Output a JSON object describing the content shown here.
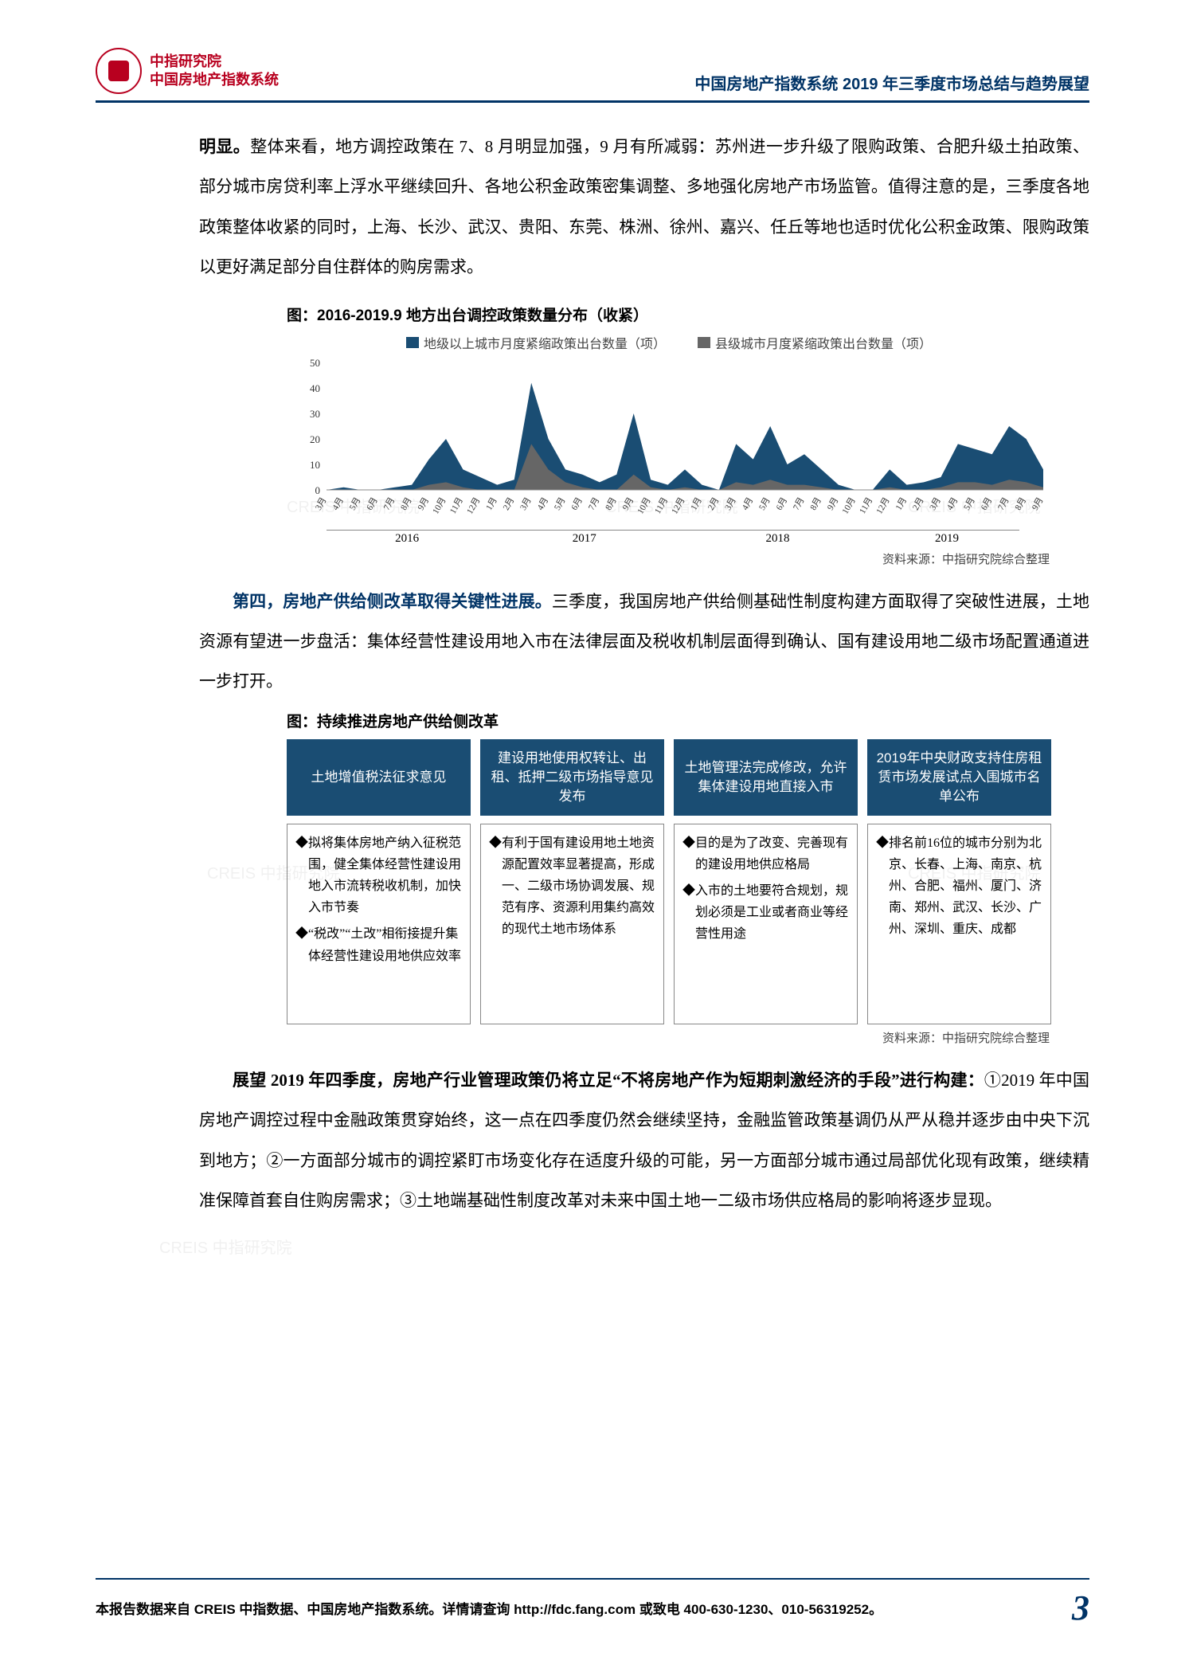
{
  "header": {
    "org_line1": "中指研究院",
    "org_line2": "中国房地产指数系统",
    "doc_title": "中国房地产指数系统 2019 年三季度市场总结与趋势展望"
  },
  "para1_lead": "明显。",
  "para1": "整体来看，地方调控政策在 7、8 月明显加强，9 月有所减弱：苏州进一步升级了限购政策、合肥升级土拍政策、部分城市房贷利率上浮水平继续回升、各地公积金政策密集调整、多地强化房地产市场监管。值得注意的是，三季度各地政策整体收紧的同时，上海、长沙、武汉、贵阳、东莞、株洲、徐州、嘉兴、任丘等地也适时优化公积金政策、限购政策以更好满足部分自住群体的购房需求。",
  "chart1": {
    "title": "图：2016-2019.9 地方出台调控政策数量分布（收紧）",
    "legend": {
      "series1": {
        "label": "地级以上城市月度紧缩政策出台数量（项）",
        "color": "#1a4d73"
      },
      "series2": {
        "label": "县级城市月度紧缩政策出台数量（项）",
        "color": "#666666"
      }
    },
    "ylim": [
      0,
      50
    ],
    "ytick_step": 10,
    "x_months": [
      "3月",
      "4月",
      "5月",
      "6月",
      "7月",
      "8月",
      "9月",
      "10月",
      "11月",
      "12月",
      "1月",
      "2月",
      "3月",
      "4月",
      "5月",
      "6月",
      "7月",
      "8月",
      "9月",
      "10月",
      "11月",
      "12月",
      "1月",
      "2月",
      "3月",
      "4月",
      "5月",
      "6月",
      "7月",
      "8月",
      "9月",
      "10月",
      "11月",
      "12月",
      "1月",
      "2月",
      "3月",
      "4月",
      "5月",
      "6月",
      "7月",
      "8月",
      "9月"
    ],
    "year_labels": [
      "2016",
      "2017",
      "2018",
      "2019"
    ],
    "year_spans": [
      10,
      12,
      12,
      9
    ],
    "series1_values": [
      0,
      1,
      0,
      0,
      1,
      2,
      12,
      20,
      8,
      5,
      2,
      4,
      42,
      20,
      8,
      6,
      3,
      6,
      30,
      4,
      2,
      8,
      2,
      0,
      18,
      12,
      25,
      10,
      14,
      8,
      2,
      0,
      0,
      8,
      2,
      3,
      5,
      18,
      16,
      14,
      25,
      20,
      8
    ],
    "series2_values": [
      0,
      0,
      0,
      0,
      0,
      0,
      2,
      3,
      1,
      0,
      0,
      0,
      18,
      8,
      3,
      1,
      0,
      0,
      6,
      1,
      0,
      1,
      0,
      0,
      3,
      2,
      4,
      2,
      2,
      1,
      0,
      0,
      0,
      1,
      0,
      0,
      1,
      3,
      3,
      2,
      4,
      3,
      1
    ],
    "background_color": "#ffffff",
    "line_width": 0,
    "source": "资料来源：中指研究院综合整理"
  },
  "para2_head": "第四，房地产供给侧改革取得关键性进展。",
  "para2": "三季度，我国房地产供给侧基础性制度构建方面取得了突破性进展，土地资源有望进一步盘活：集体经营性建设用地入市在法律层面及税收机制层面得到确认、国有建设用地二级市场配置通道进一步打开。",
  "table": {
    "title": "图：持续推进房地产供给侧改革",
    "head_bg": "#1a4d73",
    "head_color": "#ffffff",
    "body_border": "#888888",
    "columns": [
      {
        "head": "土地增值税法征求意见",
        "bullets": [
          "◆拟将集体房地产纳入征税范围，健全集体经营性建设用地入市流转税收机制，加快入市节奏",
          "◆“税改”“土改”相衔接提升集体经营性建设用地供应效率"
        ]
      },
      {
        "head": "建设用地使用权转让、出租、抵押二级市场指导意见发布",
        "bullets": [
          "◆有利于国有建设用地土地资源配置效率显著提高，形成一、二级市场协调发展、规范有序、资源利用集约高效的现代土地市场体系"
        ]
      },
      {
        "head": "土地管理法完成修改，允许集体建设用地直接入市",
        "bullets": [
          "◆目的是为了改变、完善现有的建设用地供应格局",
          "◆入市的土地要符合规划，规划必须是工业或者商业等经营性用途"
        ]
      },
      {
        "head": "2019年中央财政支持住房租赁市场发展试点入围城市名单公布",
        "bullets": [
          "◆排名前16位的城市分别为北京、长春、上海、南京、杭州、合肥、福州、厦门、济南、郑州、武汉、长沙、广州、深圳、重庆、成都"
        ]
      }
    ],
    "source": "资料来源：中指研究院综合整理"
  },
  "para3_head": "展望 2019 年四季度，房地产行业管理政策仍将立足“不将房地产作为短期刺激经济的手段”进行构建：",
  "para3": "①2019 年中国房地产调控过程中金融政策贯穿始终，这一点在四季度仍然会继续坚持，金融监管政策基调仍从严从稳并逐步由中央下沉到地方；②一方面部分城市的调控紧盯市场变化存在适度升级的可能，另一方面部分城市通过局部优化现有政策，继续精准保障首套自住购房需求；③土地端基础性制度改革对未来中国土地一二级市场供应格局的影响将逐步显现。",
  "footer": {
    "text": "本报告数据来自 CREIS 中指数据、中国房地产指数系统。详情请查询 http://fdc.fang.com 或致电 400-630-1230、010-56319252。",
    "page": "3"
  },
  "watermark_text": "CREIS 中指研究院"
}
